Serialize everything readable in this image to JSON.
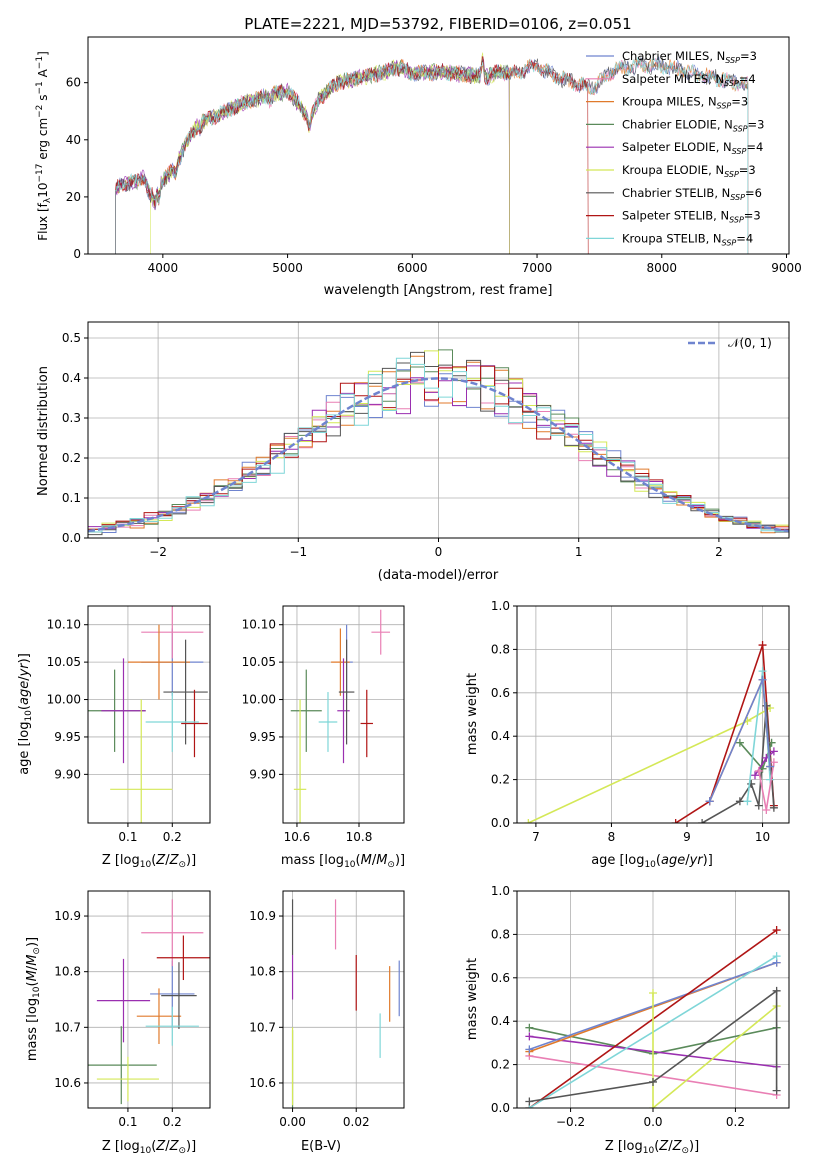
{
  "figure": {
    "title": "PLATE=2221, MJD=53792, FIBERID=0106, z=0.051"
  },
  "colors": {
    "Chabrier MILES": "#6f84cf",
    "Salpeter MILES": "#e97fb4",
    "Kroupa MILES": "#e07a2b",
    "Chabrier ELODIE": "#5a8a5a",
    "Salpeter ELODIE": "#9a2fb0",
    "Kroupa ELODIE": "#d4e857",
    "Chabrier STELIB": "#555555",
    "Salpeter STELIB": "#b01515",
    "Kroupa STELIB": "#7fd6d8",
    "gaussian": "#6f84cf"
  },
  "legend_spectrum": [
    {
      "model": "Chabrier MILES",
      "label": "Chabrier MILES, N",
      "sub": "SSP",
      "eq": "=3"
    },
    {
      "model": "Salpeter MILES",
      "label": "Salpeter MILES, N",
      "sub": "SSP",
      "eq": "=4"
    },
    {
      "model": "Kroupa MILES",
      "label": "Kroupa MILES, N",
      "sub": "SSP",
      "eq": "=3"
    },
    {
      "model": "Chabrier ELODIE",
      "label": "Chabrier ELODIE, N",
      "sub": "SSP",
      "eq": "=3"
    },
    {
      "model": "Salpeter ELODIE",
      "label": "Salpeter ELODIE, N",
      "sub": "SSP",
      "eq": "=4"
    },
    {
      "model": "Kroupa ELODIE",
      "label": "Kroupa ELODIE, N",
      "sub": "SSP",
      "eq": "=3"
    },
    {
      "model": "Chabrier STELIB",
      "label": "Chabrier STELIB, N",
      "sub": "SSP",
      "eq": "=6"
    },
    {
      "model": "Salpeter STELIB",
      "label": "Salpeter STELIB, N",
      "sub": "SSP",
      "eq": "=3"
    },
    {
      "model": "Kroupa STELIB",
      "label": "Kroupa STELIB, N",
      "sub": "SSP",
      "eq": "=4"
    }
  ],
  "legend_residual": {
    "label": "𝒩(0, 1)"
  },
  "chart_data": [
    {
      "id": "spectrum",
      "type": "line",
      "xlabel": "wavelength [Angstrom, rest frame]",
      "ylabel": "Flux [f_λ 10^-17 erg cm^-2 s^-1 A^-1]",
      "xlim": [
        3400,
        9020
      ],
      "ylim": [
        0,
        76
      ],
      "xticks": [
        4000,
        5000,
        6000,
        7000,
        8000,
        9000
      ],
      "yticks": [
        0,
        20,
        40,
        60
      ],
      "grid": false,
      "legend": "right",
      "anchor_x": [
        3600,
        3650,
        3750,
        3850,
        3900,
        3950,
        4000,
        4100,
        4200,
        4300,
        4400,
        4500,
        4600,
        4800,
        5000,
        5100,
        5175,
        5250,
        5400,
        5600,
        5800,
        5900,
        6000,
        6200,
        6400,
        6600,
        6700,
        6800,
        7000,
        7150,
        7300,
        7450,
        7600,
        7800,
        8000,
        8200,
        8400,
        8600,
        8700
      ],
      "anchor_y": [
        20,
        24,
        25,
        27,
        20,
        22,
        26,
        30,
        40,
        46,
        48,
        50,
        52,
        55,
        57,
        52,
        47,
        54,
        60,
        62,
        64,
        66,
        63,
        64,
        63,
        62,
        64,
        63,
        66,
        62,
        60,
        58,
        64,
        66,
        66,
        64,
        62,
        60,
        59
      ],
      "edges": {
        "Chabrier MILES": [
          3620,
          8690
        ],
        "Salpeter MILES": [
          3620,
          8690
        ],
        "Kroupa MILES": [
          3620,
          8690
        ],
        "Chabrier ELODIE": [
          3620,
          6780
        ],
        "Salpeter ELODIE": [
          3620,
          6780
        ],
        "Kroupa ELODIE": [
          3900,
          6780
        ],
        "Chabrier STELIB": [
          3620,
          8690
        ],
        "Salpeter STELIB": [
          3620,
          7410
        ],
        "Kroupa STELIB": [
          3620,
          8690
        ]
      }
    },
    {
      "id": "residuals",
      "type": "line",
      "xlabel": "(data-model)/error",
      "ylabel": "Normed distribution",
      "xlim": [
        -2.5,
        2.5
      ],
      "ylim": [
        0,
        0.54
      ],
      "xticks": [
        -2,
        -1,
        0,
        1,
        2
      ],
      "yticks": [
        0.0,
        0.1,
        0.2,
        0.3,
        0.4,
        0.5
      ],
      "grid": true,
      "legend": "top-right",
      "bin_width": 0.1,
      "curve": {
        "name": "𝒩(0, 1)",
        "mean": 0,
        "sigma": 1
      }
    },
    {
      "id": "age_vs_Z",
      "type": "scatter",
      "xlabel": "Z [log10(Z/Z⊙)]",
      "ylabel": "age [log10(age/yr)]",
      "xlim": [
        0.01,
        0.285
      ],
      "ylim": [
        9.835,
        10.125
      ],
      "xticks": [
        0.1,
        0.2
      ],
      "yticks": [
        9.9,
        9.95,
        10.0,
        10.05,
        10.1
      ],
      "grid": true,
      "points": [
        {
          "model": "Chabrier MILES",
          "x": 0.2,
          "xerr": 0.07,
          "y": 10.05,
          "yerr": 0.045
        },
        {
          "model": "Salpeter MILES",
          "x": 0.2,
          "xerr": 0.07,
          "y": 10.09,
          "yerr": 0.035
        },
        {
          "model": "Kroupa MILES",
          "x": 0.17,
          "xerr": 0.07,
          "y": 10.05,
          "yerr": 0.05
        },
        {
          "model": "Chabrier ELODIE",
          "x": 0.07,
          "xerr": 0.07,
          "y": 9.985,
          "yerr": 0.055
        },
        {
          "model": "Salpeter ELODIE",
          "x": 0.09,
          "xerr": 0.05,
          "y": 9.985,
          "yerr": 0.07
        },
        {
          "model": "Kroupa ELODIE",
          "x": 0.13,
          "xerr": 0.07,
          "y": 9.88,
          "yerr": 0.12
        },
        {
          "model": "Chabrier STELIB",
          "x": 0.23,
          "xerr": 0.05,
          "y": 10.01,
          "yerr": 0.07
        },
        {
          "model": "Salpeter STELIB",
          "x": 0.25,
          "xerr": 0.03,
          "y": 9.968,
          "yerr": 0.045
        },
        {
          "model": "Kroupa STELIB",
          "x": 0.2,
          "xerr": 0.06,
          "y": 9.97,
          "yerr": 0.04
        }
      ]
    },
    {
      "id": "age_vs_mass",
      "type": "scatter",
      "xlabel": "mass [log10(M/M⊙)]",
      "ylabel": "",
      "xlim": [
        10.555,
        10.945
      ],
      "ylim": [
        9.835,
        10.125
      ],
      "xticks": [
        10.6,
        10.8
      ],
      "yticks": [
        9.9,
        9.95,
        10.0,
        10.05,
        10.1
      ],
      "grid": true,
      "points": [
        {
          "model": "Chabrier MILES",
          "x": 10.76,
          "xerr": 0.02,
          "y": 10.05,
          "yerr": 0.05
        },
        {
          "model": "Salpeter MILES",
          "x": 10.87,
          "xerr": 0.03,
          "y": 10.09,
          "yerr": 0.03
        },
        {
          "model": "Kroupa MILES",
          "x": 10.74,
          "xerr": 0.03,
          "y": 10.05,
          "yerr": 0.045
        },
        {
          "model": "Chabrier ELODIE",
          "x": 10.63,
          "xerr": 0.05,
          "y": 9.985,
          "yerr": 0.055
        },
        {
          "model": "Salpeter ELODIE",
          "x": 10.75,
          "xerr": 0.02,
          "y": 9.985,
          "yerr": 0.07
        },
        {
          "model": "Kroupa ELODIE",
          "x": 10.61,
          "xerr": 0.02,
          "y": 9.88,
          "yerr": 0.12
        },
        {
          "model": "Chabrier STELIB",
          "x": 10.76,
          "xerr": 0.025,
          "y": 10.01,
          "yerr": 0.07
        },
        {
          "model": "Salpeter STELIB",
          "x": 10.825,
          "xerr": 0.02,
          "y": 9.968,
          "yerr": 0.045
        },
        {
          "model": "Kroupa STELIB",
          "x": 10.7,
          "xerr": 0.03,
          "y": 9.97,
          "yerr": 0.04
        }
      ]
    },
    {
      "id": "weight_vs_age",
      "type": "line",
      "xlabel": "age [log10(age/yr)]",
      "ylabel": "mass weight",
      "xlim": [
        6.75,
        10.35
      ],
      "ylim": [
        0,
        1.0
      ],
      "xticks": [
        7,
        8,
        9,
        10
      ],
      "yticks": [
        0.0,
        0.2,
        0.4,
        0.6,
        0.8,
        1.0
      ],
      "grid": true,
      "series": [
        {
          "model": "Kroupa ELODIE",
          "x": [
            6.9,
            9.8,
            10.1
          ],
          "y": [
            0.0,
            0.47,
            0.53
          ]
        },
        {
          "model": "Salpeter STELIB",
          "x": [
            8.85,
            9.3,
            10.0,
            10.15
          ],
          "y": [
            0.0,
            0.1,
            0.82,
            0.08
          ]
        },
        {
          "model": "Chabrier STELIB",
          "x": [
            9.2,
            9.7,
            9.85,
            9.95,
            10.05,
            10.15
          ],
          "y": [
            0.0,
            0.1,
            0.18,
            0.08,
            0.54,
            0.07
          ]
        },
        {
          "model": "Chabrier ELODIE",
          "x": [
            9.7,
            10.0,
            10.12
          ],
          "y": [
            0.37,
            0.25,
            0.37
          ]
        },
        {
          "model": "Salpeter ELODIE",
          "x": [
            9.9,
            10.05,
            10.15
          ],
          "y": [
            0.22,
            0.3,
            0.33
          ]
        },
        {
          "model": "Kroupa STELIB",
          "x": [
            9.8,
            10.0,
            10.1
          ],
          "y": [
            0.1,
            0.7,
            0.2
          ]
        },
        {
          "model": "Salpeter MILES",
          "x": [
            9.95,
            10.05,
            10.15
          ],
          "y": [
            0.24,
            0.06,
            0.28
          ]
        },
        {
          "model": "Kroupa MILES",
          "x": [
            9.3,
            10.0,
            10.1
          ],
          "y": [
            0.1,
            0.66,
            0.26
          ]
        },
        {
          "model": "Chabrier MILES",
          "x": [
            9.3,
            10.0,
            10.1
          ],
          "y": [
            0.1,
            0.66,
            0.26
          ]
        }
      ]
    },
    {
      "id": "mass_vs_Z",
      "type": "scatter",
      "xlabel": "Z [log10(Z/Z⊙)]",
      "ylabel": "mass [log10(M/M⊙)]",
      "xlim": [
        0.01,
        0.285
      ],
      "ylim": [
        10.555,
        10.945
      ],
      "xticks": [
        0.1,
        0.2
      ],
      "yticks": [
        10.6,
        10.7,
        10.8,
        10.9
      ],
      "grid": true,
      "points": [
        {
          "model": "Chabrier MILES",
          "x": 0.2,
          "xerr": 0.05,
          "y": 10.76,
          "yerr": 0.06
        },
        {
          "model": "Salpeter MILES",
          "x": 0.2,
          "xerr": 0.07,
          "y": 10.87,
          "yerr": 0.06
        },
        {
          "model": "Kroupa MILES",
          "x": 0.17,
          "xerr": 0.05,
          "y": 10.72,
          "yerr": 0.05
        },
        {
          "model": "Chabrier ELODIE",
          "x": 0.085,
          "xerr": 0.08,
          "y": 10.632,
          "yerr": 0.07
        },
        {
          "model": "Salpeter ELODIE",
          "x": 0.09,
          "xerr": 0.06,
          "y": 10.748,
          "yerr": 0.075
        },
        {
          "model": "Kroupa ELODIE",
          "x": 0.1,
          "xerr": 0.07,
          "y": 10.607,
          "yerr": 0.04
        },
        {
          "model": "Chabrier STELIB",
          "x": 0.215,
          "xerr": 0.04,
          "y": 10.757,
          "yerr": 0.06
        },
        {
          "model": "Salpeter STELIB",
          "x": 0.225,
          "xerr": 0.06,
          "y": 10.825,
          "yerr": 0.04
        },
        {
          "model": "Kroupa STELIB",
          "x": 0.2,
          "xerr": 0.06,
          "y": 10.702,
          "yerr": 0.035
        }
      ]
    },
    {
      "id": "mass_vs_EBV",
      "type": "scatter",
      "xlabel": "E(B-V)",
      "ylabel": "",
      "xlim": [
        -0.003,
        0.035
      ],
      "ylim": [
        10.555,
        10.945
      ],
      "xticks": [
        0.0,
        0.02
      ],
      "yticks": [
        10.6,
        10.7,
        10.8,
        10.9
      ],
      "grid": true,
      "points": [
        {
          "model": "Chabrier MILES",
          "x": 0.0335,
          "xerr": 0,
          "y": 10.77,
          "yerr": 0.05
        },
        {
          "model": "Salpeter MILES",
          "x": 0.0135,
          "xerr": 0,
          "y": 10.885,
          "yerr": 0.045
        },
        {
          "model": "Kroupa MILES",
          "x": 0.0305,
          "xerr": 0,
          "y": 10.76,
          "yerr": 0.05
        },
        {
          "model": "Chabrier ELODIE",
          "x": 0.0,
          "xerr": 0,
          "y": 10.625,
          "yerr": 0.07
        },
        {
          "model": "Salpeter ELODIE",
          "x": 0.0,
          "xerr": 0,
          "y": 10.79,
          "yerr": 0.04
        },
        {
          "model": "Kroupa ELODIE",
          "x": 0.0,
          "xerr": 0,
          "y": 10.63,
          "yerr": 0.07
        },
        {
          "model": "Chabrier STELIB",
          "x": 0.0,
          "xerr": 0,
          "y": 10.88,
          "yerr": 0.05
        },
        {
          "model": "Salpeter STELIB",
          "x": 0.02,
          "xerr": 0,
          "y": 10.78,
          "yerr": 0.05
        },
        {
          "model": "Kroupa STELIB",
          "x": 0.0275,
          "xerr": 0,
          "y": 10.685,
          "yerr": 0.04
        }
      ]
    },
    {
      "id": "weight_vs_Z",
      "type": "line",
      "xlabel": "Z [log10(Z/Z⊙)]",
      "ylabel": "mass weight",
      "xlim": [
        -0.33,
        0.33
      ],
      "ylim": [
        0,
        1.0
      ],
      "xticks": [
        -0.2,
        0.0,
        0.2
      ],
      "yticks": [
        0.0,
        0.2,
        0.4,
        0.6,
        0.8,
        1.0
      ],
      "grid": true,
      "series": [
        {
          "model": "Chabrier ELODIE",
          "x": [
            -0.3,
            0.0,
            0.3
          ],
          "y": [
            0.37,
            0.25,
            0.37
          ]
        },
        {
          "model": "Salpeter ELODIE",
          "x": [
            -0.3,
            0.3
          ],
          "y": [
            0.33,
            0.19
          ]
        },
        {
          "model": "Salpeter MILES",
          "x": [
            -0.3,
            0.3
          ],
          "y": [
            0.24,
            0.06
          ]
        },
        {
          "model": "Kroupa MILES",
          "x": [
            -0.3,
            0.3
          ],
          "y": [
            0.26,
            0.67
          ]
        },
        {
          "model": "Chabrier MILES",
          "x": [
            -0.3,
            0.3
          ],
          "y": [
            0.27,
            0.67
          ]
        },
        {
          "model": "Salpeter STELIB",
          "x": [
            -0.3,
            0.3
          ],
          "y": [
            0.0,
            0.82
          ]
        },
        {
          "model": "Kroupa STELIB",
          "x": [
            -0.3,
            0.3
          ],
          "y": [
            0.0,
            0.7
          ]
        },
        {
          "model": "Kroupa ELODIE",
          "x": [
            0.0,
            0.0,
            0.3
          ],
          "y": [
            0.53,
            0.0,
            0.47
          ]
        },
        {
          "model": "Chabrier STELIB",
          "x": [
            -0.3,
            0.0,
            0.3,
            0.3
          ],
          "y": [
            0.03,
            0.12,
            0.54,
            0.08
          ]
        }
      ]
    }
  ]
}
